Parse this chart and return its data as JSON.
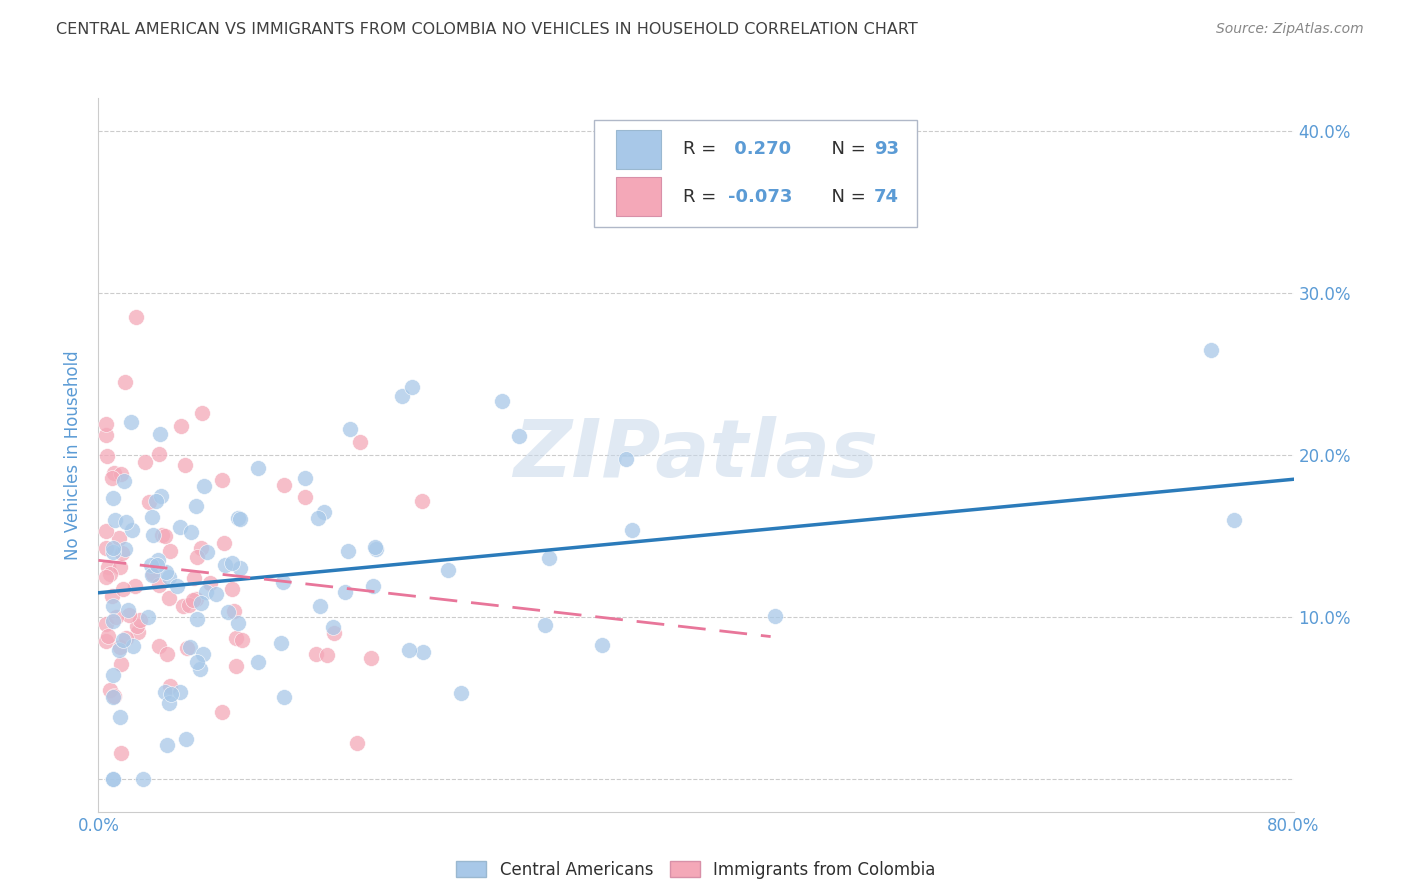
{
  "title": "CENTRAL AMERICAN VS IMMIGRANTS FROM COLOMBIA NO VEHICLES IN HOUSEHOLD CORRELATION CHART",
  "source": "Source: ZipAtlas.com",
  "ylabel": "No Vehicles in Household",
  "xlim": [
    0.0,
    0.8
  ],
  "ylim": [
    -0.02,
    0.42
  ],
  "xtick_positions": [
    0.0,
    0.1,
    0.2,
    0.3,
    0.4,
    0.5,
    0.6,
    0.7,
    0.8
  ],
  "ytick_positions": [
    0.0,
    0.1,
    0.2,
    0.3,
    0.4
  ],
  "legend_blue_label": "R =  0.270   N = 93",
  "legend_pink_label": "R = -0.073   N = 74",
  "blue_color": "#a8c8e8",
  "pink_color": "#f4a8b8",
  "blue_line_color": "#2b7bba",
  "pink_line_color": "#e8769a",
  "background_color": "#ffffff",
  "grid_color": "#cccccc",
  "title_color": "#404040",
  "axis_label_color": "#5b9bd5",
  "watermark": "ZIPatlas",
  "blue_r": 0.27,
  "pink_r": -0.073,
  "blue_n": 93,
  "pink_n": 74,
  "blue_line_x0": 0.0,
  "blue_line_y0": 0.115,
  "blue_line_x1": 0.8,
  "blue_line_y1": 0.185,
  "pink_line_x0": 0.0,
  "pink_line_y0": 0.135,
  "pink_line_x1": 0.45,
  "pink_line_y1": 0.088
}
